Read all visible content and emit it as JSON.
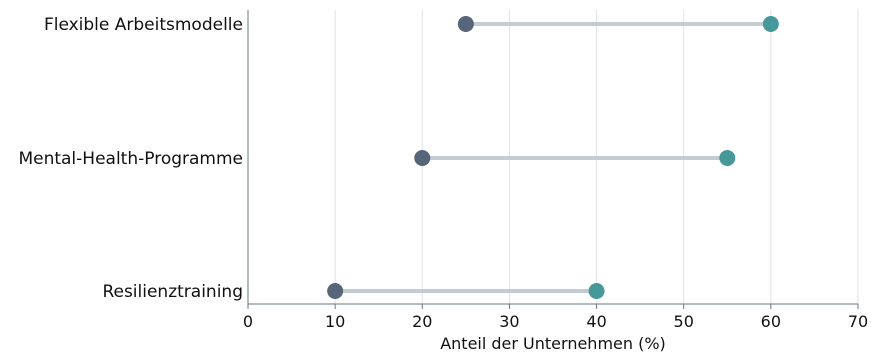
{
  "chart_data": {
    "type": "dumbbell",
    "title": "",
    "xlabel": "Anteil der Unternehmen (%)",
    "ylabel": "",
    "xlim": [
      0,
      70
    ],
    "xticks": [
      0,
      10,
      20,
      30,
      40,
      50,
      60,
      70
    ],
    "grid": "vertical",
    "legend": "none",
    "categories": [
      "Flexible Arbeitsmodelle",
      "Mental-Health-Programme",
      "Resilienztraining"
    ],
    "series": [
      {
        "values": [
          25,
          20,
          10
        ],
        "color": "#56657a"
      },
      {
        "values": [
          60,
          55,
          40
        ],
        "color": "#46999a"
      }
    ],
    "connector_color": "#c3cbd3",
    "grid_color": "#e2e2e2",
    "axis_color": "#687585"
  }
}
